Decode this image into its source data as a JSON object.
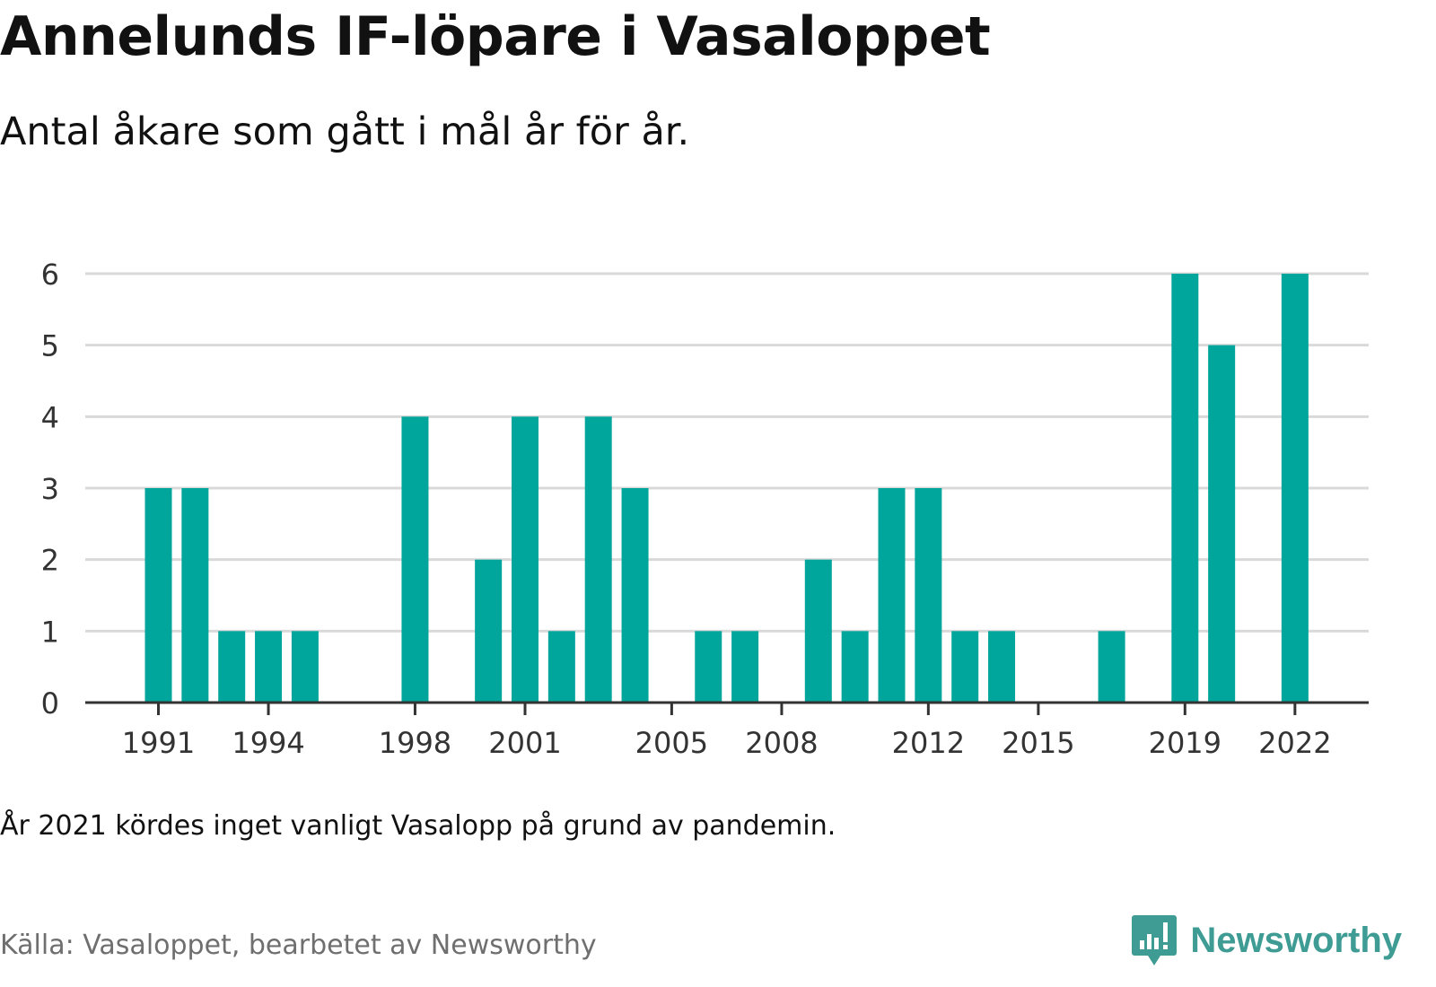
{
  "header": {
    "title": "Annelunds IF-löpare i Vasaloppet",
    "subtitle": "Antal åkare som gått i mål år för år."
  },
  "footer": {
    "note": "År 2021 kördes inget vanligt Vasalopp på grund av pandemin.",
    "source": "Källa: Vasaloppet, bearbetet av Newsworthy",
    "brand": "Newsworthy"
  },
  "colors": {
    "bar": "#00a59b",
    "grid": "#d9d9d9",
    "axis": "#333333",
    "brand": "#3f9c94"
  },
  "icons": {
    "brand_logo": "chat-bubble-bar-chart-icon"
  },
  "chart_data": {
    "type": "bar",
    "x": [
      1991,
      1992,
      1993,
      1994,
      1995,
      1996,
      1997,
      1998,
      1999,
      2000,
      2001,
      2002,
      2003,
      2004,
      2005,
      2006,
      2007,
      2008,
      2009,
      2010,
      2011,
      2012,
      2013,
      2014,
      2015,
      2016,
      2017,
      2018,
      2019,
      2020,
      2021,
      2022
    ],
    "values": [
      3,
      3,
      1,
      1,
      1,
      0,
      0,
      4,
      0,
      2,
      4,
      1,
      4,
      3,
      0,
      1,
      1,
      0,
      2,
      1,
      3,
      3,
      1,
      1,
      0,
      0,
      1,
      0,
      6,
      5,
      0,
      6
    ],
    "x_ticks": [
      1991,
      1994,
      1998,
      2001,
      2005,
      2008,
      2012,
      2015,
      2019,
      2022
    ],
    "y_ticks": [
      0,
      1,
      2,
      3,
      4,
      5,
      6
    ],
    "ylim": [
      0,
      6
    ],
    "grid": true,
    "legend": "none"
  }
}
